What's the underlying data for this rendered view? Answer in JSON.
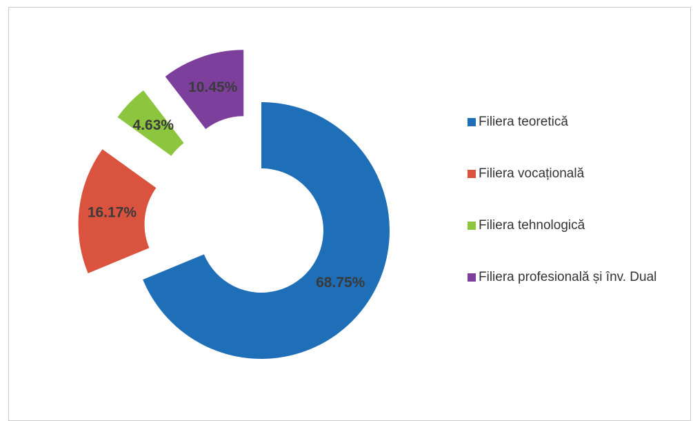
{
  "chart_data": {
    "type": "donut",
    "categories": [
      "Filiera teoretică",
      "Filiera vocațională",
      "Filiera tehnologică",
      "Filiera profesională și înv. Dual"
    ],
    "values": [
      68.75,
      16.17,
      4.63,
      10.45
    ],
    "value_labels": [
      "68.75%",
      "16.17%",
      "4.63%",
      "10.45%"
    ],
    "colors": [
      "#1f6eb8",
      "#d9533f",
      "#8cc63f",
      "#7d3f9c"
    ],
    "legend": "right"
  }
}
